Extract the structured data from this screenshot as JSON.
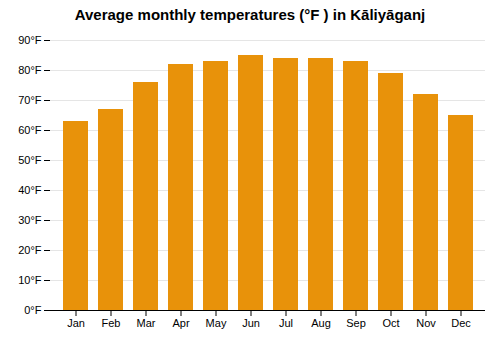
{
  "chart_data": {
    "type": "bar",
    "title": "Average monthly temperatures (°F ) in Kāliyāganj",
    "categories": [
      "Jan",
      "Feb",
      "Mar",
      "Apr",
      "May",
      "Jun",
      "Jul",
      "Aug",
      "Sep",
      "Oct",
      "Nov",
      "Dec"
    ],
    "values": [
      63,
      67,
      76,
      82,
      83,
      85,
      84,
      84,
      83,
      79,
      72,
      65
    ],
    "color": "#E8920A",
    "ylim": [
      0,
      90
    ],
    "yticks": [
      {
        "value": 0,
        "label": "0°F"
      },
      {
        "value": 10,
        "label": "10°F"
      },
      {
        "value": 20,
        "label": "20°F"
      },
      {
        "value": 30,
        "label": "30°F"
      },
      {
        "value": 40,
        "label": "40°F"
      },
      {
        "value": 50,
        "label": "50°F"
      },
      {
        "value": 60,
        "label": "60°F"
      },
      {
        "value": 70,
        "label": "70°F"
      },
      {
        "value": 80,
        "label": "80°F"
      },
      {
        "value": 90,
        "label": "90°F"
      }
    ],
    "grid": true
  }
}
